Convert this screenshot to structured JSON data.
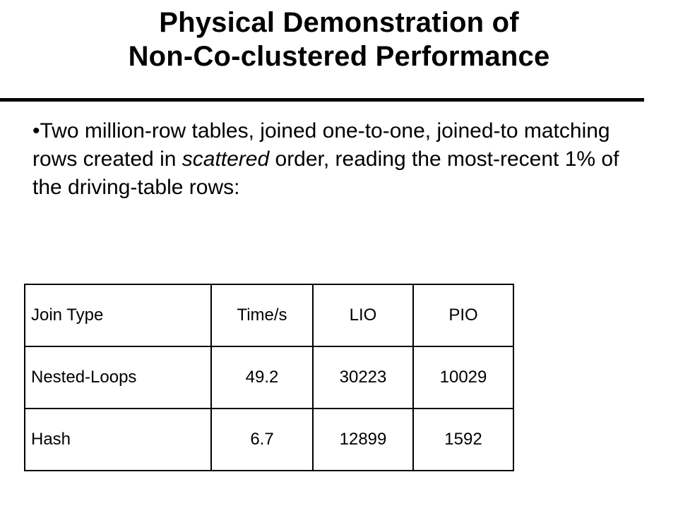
{
  "slide": {
    "title_line1": "Physical Demonstration of",
    "title_line2": "Non-Co-clustered Performance",
    "bullet_marker": "•",
    "bullet_part1": "Two million-row tables, joined one-to-one, joined-to matching rows created in ",
    "bullet_emphasis": "scattered",
    "bullet_part2": " order, reading the most-recent 1% of the driving-table rows:"
  },
  "table": {
    "headers": [
      "Join Type",
      "Time/s",
      "LIO",
      "PIO"
    ],
    "rows": [
      [
        "Nested-Loops",
        "49.2",
        "30223",
        "10029"
      ],
      [
        "Hash",
        "6.7",
        "12899",
        "1592"
      ]
    ]
  }
}
